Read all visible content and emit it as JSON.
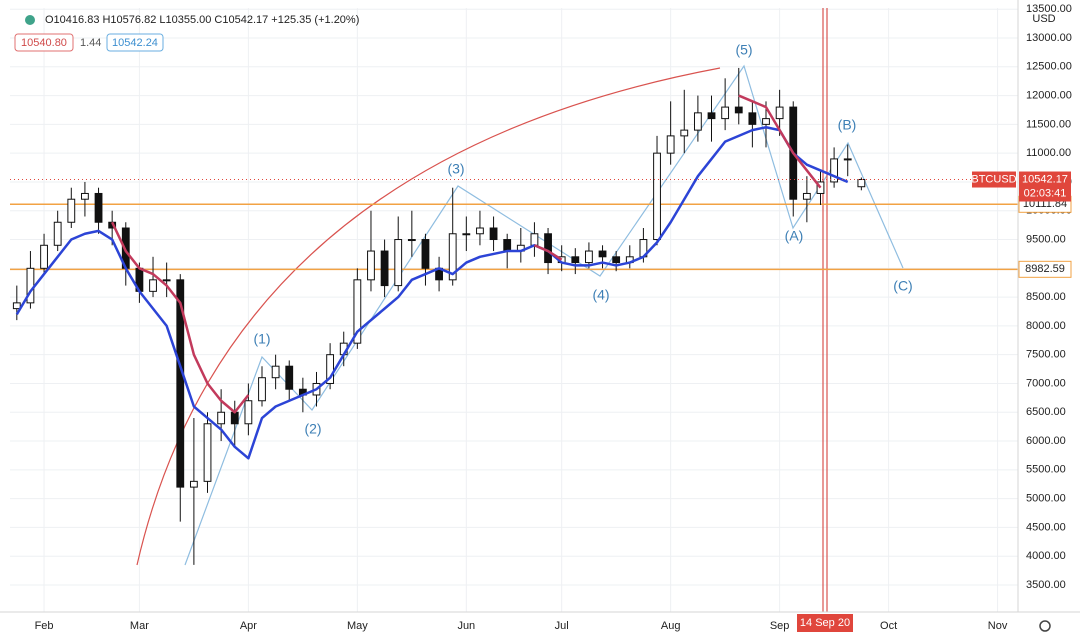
{
  "header": {
    "ohlc": "O10416.83 H10576.82 L10355.00 C10542.17 +125.35 (+1.20%)",
    "ind_a": "10540.80",
    "ind_b": "1.44",
    "ind_c": "10542.24"
  },
  "chart_data": {
    "type": "candlestick",
    "currency": "USD",
    "categories": [
      null,
      null,
      "Feb",
      null,
      null,
      null,
      null,
      null,
      null,
      "Mar",
      null,
      null,
      null,
      null,
      null,
      null,
      null,
      "Apr",
      null,
      null,
      null,
      null,
      null,
      null,
      null,
      "May",
      null,
      null,
      null,
      null,
      null,
      null,
      null,
      "Jun",
      null,
      null,
      null,
      null,
      null,
      null,
      "Jul",
      null,
      null,
      null,
      null,
      null,
      null,
      null,
      "Aug",
      null,
      null,
      null,
      null,
      null,
      null,
      null,
      "Sep",
      null,
      null,
      null,
      null,
      null,
      null,
      null,
      "Oct",
      null,
      null,
      null,
      null,
      null,
      null,
      null,
      "Nov",
      null
    ],
    "open": [
      8300,
      8400,
      9000,
      9400,
      9800,
      10200,
      10300,
      9800,
      9700,
      9000,
      8600,
      8800,
      8800,
      5200,
      5300,
      6300,
      6500,
      6300,
      6700,
      7100,
      7300,
      6900,
      6800,
      7000,
      7500,
      7700,
      8800,
      9300,
      8700,
      9500,
      9500,
      9000,
      8800,
      9600,
      9600,
      9700,
      9500,
      9300,
      9400,
      9600,
      9100,
      9200,
      9100,
      9300,
      9200,
      9100,
      9200,
      9500,
      11000,
      11300,
      11400,
      11700,
      11600,
      11800,
      11700,
      11500,
      11600,
      11800,
      10200,
      10300,
      10500,
      10900,
      10416.83,
      null,
      null,
      null,
      null,
      null,
      null,
      null,
      null,
      null,
      null,
      null
    ],
    "high": [
      8700,
      9300,
      9600,
      10000,
      10400,
      10500,
      10400,
      10000,
      9800,
      9100,
      9200,
      9100,
      8900,
      6400,
      6500,
      6900,
      6700,
      7000,
      7300,
      7500,
      7400,
      7100,
      7200,
      7700,
      7900,
      9000,
      10000,
      9500,
      9900,
      10000,
      9600,
      9200,
      10400,
      9900,
      10000,
      9900,
      9600,
      9700,
      9800,
      9700,
      9400,
      9350,
      9450,
      9400,
      9300,
      9400,
      9700,
      11300,
      11900,
      12100,
      12000,
      12000,
      12300,
      12480,
      11900,
      11900,
      12100,
      11900,
      10600,
      10700,
      11100,
      11150,
      10576.82,
      null,
      null,
      null,
      null,
      null,
      null,
      null,
      null,
      null,
      null,
      null
    ],
    "low": [
      8100,
      8300,
      8900,
      9300,
      9700,
      9900,
      9600,
      9400,
      8700,
      8400,
      8500,
      8500,
      4600,
      3850,
      5100,
      6000,
      5900,
      6100,
      6600,
      6900,
      6700,
      6500,
      6600,
      6900,
      7300,
      7600,
      8600,
      8500,
      8600,
      9200,
      8700,
      8600,
      8700,
      9300,
      9400,
      9300,
      9000,
      9100,
      9200,
      8900,
      8950,
      8900,
      9000,
      9000,
      8950,
      9000,
      9100,
      9400,
      10800,
      11000,
      11200,
      11200,
      11400,
      11500,
      11100,
      11100,
      11300,
      9900,
      9800,
      10100,
      10400,
      10600,
      10355.0,
      null,
      null,
      null,
      null,
      null,
      null,
      null,
      null,
      null,
      null,
      null
    ],
    "close": [
      8400,
      9000,
      9400,
      9800,
      10200,
      10300,
      9800,
      9700,
      9000,
      8600,
      8800,
      8800,
      5200,
      5300,
      6300,
      6500,
      6300,
      6700,
      7100,
      7300,
      6900,
      6800,
      7000,
      7500,
      7700,
      8800,
      9300,
      8700,
      9500,
      9500,
      9000,
      8800,
      9600,
      9600,
      9700,
      9500,
      9300,
      9400,
      9600,
      9100,
      9200,
      9100,
      9300,
      9200,
      9100,
      9200,
      9500,
      11000,
      11300,
      11400,
      11700,
      11600,
      11800,
      11700,
      11500,
      11600,
      11800,
      10200,
      10300,
      10500,
      10900,
      10900,
      10542.17,
      null,
      null,
      null,
      null,
      null,
      null,
      null,
      null,
      null,
      null,
      null
    ],
    "series": [
      {
        "color": "#2c44d6",
        "values": [
          8200,
          8600,
          8900,
          9200,
          9500,
          9600,
          9650,
          9500,
          9000,
          8600,
          8300,
          8000,
          7300,
          6600,
          6400,
          6200,
          5900,
          5700,
          6400,
          6600,
          6700,
          6800,
          6900,
          7100,
          7500,
          7900,
          8100,
          8300,
          8500,
          8800,
          8900,
          9000,
          8900,
          9100,
          9200,
          9250,
          9300,
          9300,
          9400,
          9300,
          9100,
          9050,
          9050,
          9100,
          9050,
          9100,
          9200,
          9450,
          9800,
          10200,
          10600,
          10900,
          11200,
          11300,
          11400,
          11450,
          11400,
          11000,
          10800,
          10700,
          10600,
          10500,
          null,
          null,
          null,
          null,
          null,
          null,
          null,
          null,
          null,
          null,
          null,
          null
        ]
      },
      {
        "color": "#c23a5c",
        "values": [
          null,
          null,
          null,
          null,
          null,
          null,
          null,
          9800,
          9300,
          9000,
          8900,
          8700,
          8400,
          7500,
          7000,
          6700,
          6500,
          6800,
          null,
          null,
          null,
          null,
          null,
          null,
          null,
          null,
          null,
          null,
          null,
          null,
          null,
          null,
          null,
          null,
          null,
          null,
          null,
          null,
          9400,
          9300,
          9150,
          null,
          null,
          null,
          null,
          null,
          null,
          null,
          null,
          null,
          null,
          null,
          null,
          12000,
          11900,
          11800,
          11400,
          11000,
          10700,
          10400,
          null,
          null,
          null,
          null,
          null,
          null,
          null,
          null,
          null,
          null,
          null,
          null,
          null,
          null
        ]
      }
    ],
    "ylim": [
      3031,
      13521
    ],
    "yticks": [
      {
        "value": 3500,
        "label": "3500.00"
      },
      {
        "value": 4000,
        "label": "4000.00"
      },
      {
        "value": 4500,
        "label": "4500.00"
      },
      {
        "value": 5000,
        "label": "5000.00"
      },
      {
        "value": 5500,
        "label": "5500.00"
      },
      {
        "value": 6000,
        "label": "6000.00"
      },
      {
        "value": 6500,
        "label": "6500.00"
      },
      {
        "value": 7000,
        "label": "7000.00"
      },
      {
        "value": 7500,
        "label": "7500.00"
      },
      {
        "value": 8000,
        "label": "8000.00"
      },
      {
        "value": 8500,
        "label": "8500.00"
      },
      {
        "value": 9000,
        "label": "9000.00"
      },
      {
        "value": 9500,
        "label": "9500.00"
      },
      {
        "value": 10000,
        "label": "10000.00"
      },
      {
        "value": 10500,
        "label": "10500.00"
      },
      {
        "value": 11000,
        "label": "11000.00"
      },
      {
        "value": 11500,
        "label": "11500.00"
      },
      {
        "value": 12000,
        "label": "12000.00"
      },
      {
        "value": 12500,
        "label": "12500.00"
      },
      {
        "value": 13000,
        "label": "13000.00"
      },
      {
        "value": 13500,
        "label": "13500.00"
      }
    ],
    "grid": true,
    "levels": [
      {
        "value": 10111.84,
        "color": "#f2a243"
      },
      {
        "value": 8982.59,
        "color": "#f2a243"
      }
    ],
    "last_price": {
      "symbol": "BTCUSD",
      "value": 10542.17,
      "countdown": "02:03:41",
      "color": "#e0463c"
    },
    "date_marker": "14 Sep 20",
    "waves": [
      "(1)",
      "(2)",
      "(3)",
      "(4)",
      "(5)",
      "(A)",
      "(B)",
      "(C)"
    ]
  }
}
